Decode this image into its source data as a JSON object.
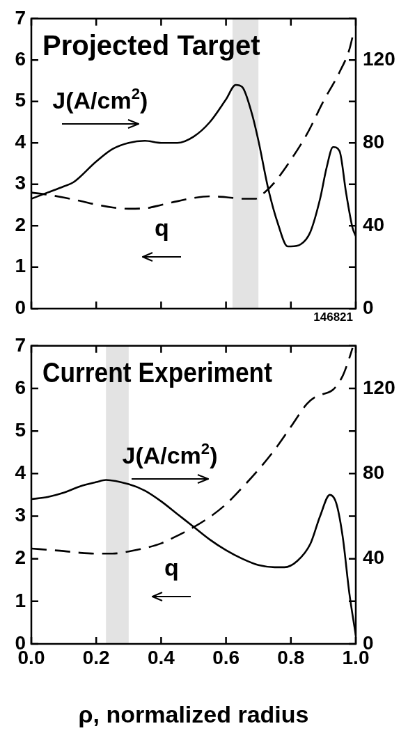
{
  "chart_data": [
    {
      "type": "line",
      "title": "Projected Target",
      "xlim": [
        0,
        1
      ],
      "xticks": [
        0,
        {
          "value": 0.2,
          "label": null
        },
        {
          "value": 0.4,
          "label": null
        },
        {
          "value": 0.6,
          "label": null
        },
        {
          "value": 0.8,
          "label": null
        },
        1
      ],
      "ylim": [
        0,
        7
      ],
      "yticks": [
        0,
        1,
        2,
        3,
        4,
        5,
        6,
        7
      ],
      "y2lim": [
        0,
        140
      ],
      "y2ticks": [
        0,
        {
          "value": 20,
          "label": null
        },
        40,
        {
          "value": 60,
          "label": null
        },
        80,
        {
          "value": 100,
          "label": null
        },
        120,
        {
          "value": 140,
          "label": null
        }
      ],
      "tick_labels": "y",
      "grid": false,
      "legend": false,
      "marker": "none",
      "series": [
        {
          "color": "#000000",
          "axis": "y2",
          "line_style": "solid",
          "x": [
            0,
            0.05,
            0.1,
            0.13,
            0.2,
            0.25,
            0.3,
            0.35,
            0.4,
            0.45,
            0.5,
            0.55,
            0.6,
            0.63,
            0.65,
            0.68,
            0.7,
            0.73,
            0.76,
            0.79,
            0.8,
            0.83,
            0.86,
            0.89,
            0.91,
            0.93,
            0.95,
            0.97,
            0.99,
            1
          ],
          "values": [
            53,
            56,
            59,
            61,
            71,
            77,
            80,
            81,
            80,
            80,
            83,
            90,
            101,
            108,
            107,
            94,
            81,
            58,
            41,
            30,
            30,
            31,
            37,
            53,
            68,
            78,
            76,
            56,
            39,
            35
          ]
        },
        {
          "color": "#000000",
          "axis": "y",
          "line_style": "dashed",
          "x": [
            0,
            0.05,
            0.1,
            0.15,
            0.2,
            0.25,
            0.3,
            0.35,
            0.4,
            0.45,
            0.5,
            0.55,
            0.6,
            0.65,
            0.69,
            0.72,
            0.75,
            0.8,
            0.85,
            0.9,
            0.95,
            0.98,
            0.995
          ],
          "values": [
            2.8,
            2.75,
            2.68,
            2.6,
            2.51,
            2.44,
            2.41,
            2.42,
            2.5,
            2.59,
            2.67,
            2.71,
            2.69,
            2.65,
            2.65,
            2.81,
            3.05,
            3.59,
            4.22,
            5.0,
            5.71,
            6.25,
            6.73
          ]
        }
      ],
      "bands": [
        {
          "axis": "x",
          "from": 0.62,
          "to": 0.7,
          "color": "#e3e3e3"
        }
      ],
      "annotations": [
        "J(A/cm$^{2}$)",
        "q",
        "146821"
      ]
    },
    {
      "type": "line",
      "title": "Current Experiment",
      "xlabel": "ρ, normalized radius",
      "xlim": [
        0,
        1
      ],
      "xticks": [
        {
          "value": 0,
          "label": "0.0"
        },
        {
          "value": 0.2,
          "label": "0.2"
        },
        {
          "value": 0.4,
          "label": "0.4"
        },
        {
          "value": 0.6,
          "label": "0.6"
        },
        {
          "value": 0.8,
          "label": "0.8"
        },
        {
          "value": 1,
          "label": "1.0"
        }
      ],
      "ylim": [
        0,
        7
      ],
      "yticks": [
        0,
        1,
        2,
        3,
        4,
        5,
        6,
        7
      ],
      "y2lim": [
        0,
        140
      ],
      "y2ticks": [
        0,
        {
          "value": 20,
          "label": null
        },
        40,
        {
          "value": 60,
          "label": null
        },
        80,
        {
          "value": 100,
          "label": null
        },
        120,
        {
          "value": 140,
          "label": null
        }
      ],
      "grid": false,
      "legend": false,
      "marker": "none",
      "series": [
        {
          "color": "#000000",
          "axis": "y2",
          "line_style": "solid",
          "x": [
            0,
            0.05,
            0.1,
            0.15,
            0.2,
            0.23,
            0.3,
            0.35,
            0.4,
            0.45,
            0.5,
            0.55,
            0.6,
            0.65,
            0.7,
            0.75,
            0.78,
            0.82,
            0.86,
            0.89,
            0.92,
            0.94,
            0.96,
            0.98,
            1
          ],
          "values": [
            68,
            69,
            71,
            74,
            76,
            77,
            75,
            72,
            67,
            61,
            55,
            49,
            44,
            40,
            37,
            36,
            36,
            39,
            47,
            60,
            70,
            66,
            50,
            24,
            4
          ]
        },
        {
          "color": "#000000",
          "axis": "y",
          "line_style": "dashed",
          "x": [
            0,
            0.05,
            0.1,
            0.15,
            0.2,
            0.25,
            0.3,
            0.35,
            0.4,
            0.45,
            0.5,
            0.55,
            0.6,
            0.65,
            0.7,
            0.75,
            0.8,
            0.85,
            0.88,
            0.9,
            0.93,
            0.96,
            0.98,
            0.99
          ],
          "values": [
            2.24,
            2.21,
            2.18,
            2.14,
            2.12,
            2.12,
            2.17,
            2.25,
            2.36,
            2.54,
            2.74,
            2.98,
            3.28,
            3.67,
            4.09,
            4.56,
            5.1,
            5.64,
            5.82,
            5.87,
            5.97,
            6.3,
            6.71,
            6.95
          ]
        }
      ],
      "bands": [
        {
          "axis": "x",
          "from": 0.23,
          "to": 0.3,
          "color": "#e3e3e3"
        }
      ],
      "annotations": [
        "J(A/cm$^{2}$)",
        "q"
      ]
    }
  ]
}
